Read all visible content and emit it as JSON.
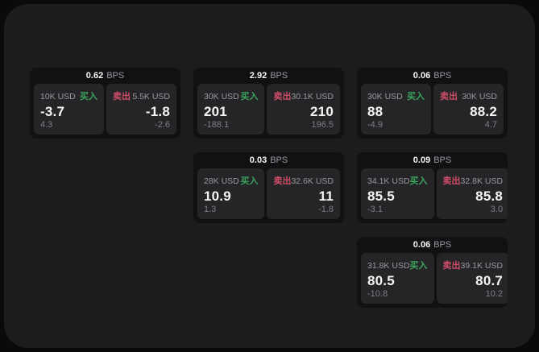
{
  "labels": {
    "buy": "买入",
    "sell": "卖出",
    "bps_unit": "BPS"
  },
  "colors": {
    "outer_bg": "#0a0a0a",
    "panel_bg": "#1c1c1d",
    "card_bg": "#111113",
    "tile_bg": "#252528",
    "buy_color": "#3ba55d",
    "sell_color": "#cf4d68",
    "text_primary": "#f5f5f7",
    "text_secondary": "#98989d",
    "text_tertiary": "#7f7f84"
  },
  "cards": [
    {
      "col": 1,
      "row": 1,
      "bps": "0.62",
      "buy": {
        "notional": "10K USD",
        "price": "-3.7",
        "delta": "4.3"
      },
      "sell": {
        "notional": "5.5K USD",
        "price": "-1.8",
        "delta": "-2.6"
      }
    },
    {
      "col": 2,
      "row": 1,
      "bps": "2.92",
      "buy": {
        "notional": "30K USD",
        "price": "201",
        "delta": "-188.1"
      },
      "sell": {
        "notional": "30.1K USD",
        "price": "210",
        "delta": "196.5"
      }
    },
    {
      "col": 3,
      "row": 1,
      "bps": "0.06",
      "buy": {
        "notional": "30K USD",
        "price": "88",
        "delta": "-4.9"
      },
      "sell": {
        "notional": "30K USD",
        "price": "88.2",
        "delta": "4.7"
      }
    },
    {
      "col": 2,
      "row": 2,
      "bps": "0.03",
      "buy": {
        "notional": "28K USD",
        "price": "10.9",
        "delta": "1.3"
      },
      "sell": {
        "notional": "32.6K USD",
        "price": "11",
        "delta": "-1.8"
      }
    },
    {
      "col": 3,
      "row": 2,
      "bps": "0.09",
      "buy": {
        "notional": "34.1K USD",
        "price": "85.5",
        "delta": "-3.1"
      },
      "sell": {
        "notional": "32.8K USD",
        "price": "85.8",
        "delta": "3.0"
      }
    },
    {
      "col": 3,
      "row": 3,
      "bps": "0.06",
      "buy": {
        "notional": "31.8K USD",
        "price": "80.5",
        "delta": "-10.8"
      },
      "sell": {
        "notional": "39.1K USD",
        "price": "80.7",
        "delta": "10.2"
      }
    }
  ]
}
